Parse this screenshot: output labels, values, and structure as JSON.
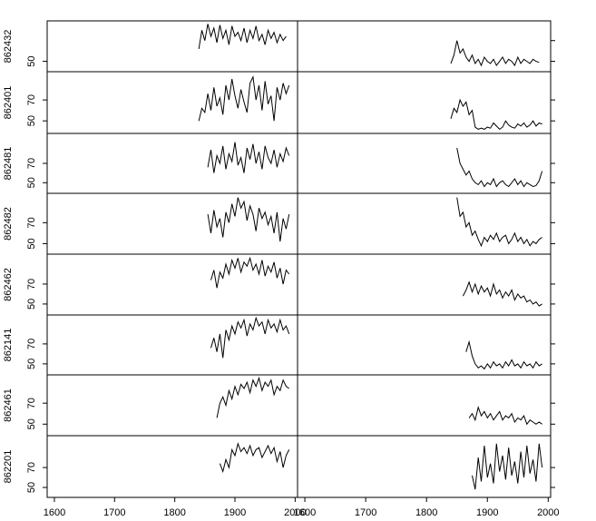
{
  "chart_data": [
    {
      "type": "line",
      "ylabel": "862432",
      "color": "#000000",
      "xlim": [
        1588,
        2004
      ],
      "ylim": [
        40,
        89
      ],
      "yticks": [
        50
      ],
      "x": [
        1840,
        1845,
        1850,
        1855,
        1860,
        1865,
        1870,
        1875,
        1880,
        1885,
        1890,
        1895,
        1900,
        1905,
        1910,
        1915,
        1920,
        1925,
        1930,
        1935,
        1940,
        1945,
        1950,
        1955,
        1960,
        1965,
        1970,
        1975,
        1980,
        1985
      ],
      "values": [
        62,
        80,
        70,
        86,
        74,
        82,
        68,
        85,
        72,
        80,
        66,
        84,
        74,
        78,
        70,
        82,
        68,
        80,
        72,
        84,
        70,
        76,
        66,
        80,
        72,
        78,
        68,
        76,
        70,
        74
      ]
    },
    {
      "type": "line",
      "ylabel": "862401",
      "color": "#000000",
      "xlim": [
        1588,
        2004
      ],
      "ylim": [
        38,
        97
      ],
      "yticks": [
        50,
        70
      ],
      "x": [
        1840,
        1845,
        1850,
        1855,
        1860,
        1865,
        1870,
        1875,
        1880,
        1885,
        1890,
        1895,
        1900,
        1905,
        1910,
        1915,
        1920,
        1925,
        1930,
        1935,
        1940,
        1945,
        1950,
        1955,
        1960,
        1965,
        1970,
        1975,
        1980,
        1985,
        1990
      ],
      "values": [
        50,
        62,
        58,
        76,
        60,
        82,
        64,
        72,
        56,
        84,
        70,
        90,
        74,
        62,
        80,
        68,
        58,
        86,
        92,
        70,
        84,
        60,
        88,
        66,
        74,
        50,
        82,
        70,
        86,
        76,
        84
      ]
    },
    {
      "type": "line",
      "ylabel": "862481",
      "color": "#000000",
      "xlim": [
        1588,
        2004
      ],
      "ylim": [
        39,
        101
      ],
      "yticks": [
        50,
        70
      ],
      "x": [
        1855,
        1860,
        1865,
        1870,
        1875,
        1880,
        1885,
        1890,
        1895,
        1900,
        1905,
        1910,
        1915,
        1920,
        1925,
        1930,
        1935,
        1940,
        1945,
        1950,
        1955,
        1960,
        1965,
        1970,
        1975,
        1980,
        1985,
        1990
      ],
      "values": [
        66,
        84,
        60,
        78,
        70,
        88,
        64,
        80,
        72,
        92,
        68,
        76,
        60,
        86,
        74,
        90,
        70,
        82,
        64,
        88,
        76,
        70,
        84,
        66,
        80,
        72,
        86,
        78
      ]
    },
    {
      "type": "line",
      "ylabel": "862482",
      "color": "#000000",
      "xlim": [
        1588,
        2004
      ],
      "ylim": [
        40,
        98
      ],
      "yticks": [
        50,
        70
      ],
      "x": [
        1855,
        1860,
        1865,
        1870,
        1875,
        1880,
        1885,
        1890,
        1895,
        1900,
        1905,
        1910,
        1915,
        1920,
        1925,
        1930,
        1935,
        1940,
        1945,
        1950,
        1955,
        1960,
        1965,
        1970,
        1975,
        1980,
        1985,
        1990
      ],
      "values": [
        78,
        60,
        82,
        66,
        74,
        56,
        80,
        70,
        88,
        76,
        94,
        84,
        90,
        72,
        86,
        78,
        62,
        84,
        74,
        80,
        68,
        76,
        60,
        80,
        52,
        74,
        64,
        78
      ]
    },
    {
      "type": "line",
      "ylabel": "862462",
      "color": "#000000",
      "xlim": [
        1588,
        2004
      ],
      "ylim": [
        39,
        100
      ],
      "yticks": [
        50,
        70
      ],
      "x": [
        1860,
        1865,
        1870,
        1875,
        1880,
        1885,
        1890,
        1895,
        1900,
        1905,
        1910,
        1915,
        1920,
        1925,
        1930,
        1935,
        1940,
        1945,
        1950,
        1955,
        1960,
        1965,
        1970,
        1975,
        1980,
        1985,
        1990
      ],
      "values": [
        74,
        84,
        66,
        82,
        76,
        90,
        80,
        94,
        86,
        96,
        82,
        92,
        88,
        96,
        84,
        90,
        80,
        94,
        78,
        88,
        82,
        92,
        76,
        86,
        70,
        84,
        80
      ]
    },
    {
      "type": "line",
      "ylabel": "862141",
      "color": "#000000",
      "xlim": [
        1588,
        2004
      ],
      "ylim": [
        39,
        99
      ],
      "yticks": [
        50,
        70
      ],
      "x": [
        1860,
        1865,
        1870,
        1875,
        1880,
        1885,
        1890,
        1895,
        1900,
        1905,
        1910,
        1915,
        1920,
        1925,
        1930,
        1935,
        1940,
        1945,
        1950,
        1955,
        1960,
        1965,
        1970,
        1975,
        1980,
        1985,
        1990
      ],
      "values": [
        66,
        76,
        62,
        80,
        56,
        84,
        74,
        88,
        80,
        92,
        86,
        94,
        78,
        90,
        84,
        96,
        88,
        92,
        80,
        94,
        86,
        90,
        82,
        94,
        84,
        88,
        80
      ]
    },
    {
      "type": "line",
      "ylabel": "862461",
      "color": "#000000",
      "xlim": [
        1588,
        2004
      ],
      "ylim": [
        39,
        97
      ],
      "yticks": [
        50,
        70
      ],
      "x": [
        1870,
        1875,
        1880,
        1885,
        1890,
        1895,
        1900,
        1905,
        1910,
        1915,
        1920,
        1925,
        1930,
        1935,
        1940,
        1945,
        1950,
        1955,
        1960,
        1965,
        1970,
        1975,
        1980,
        1985,
        1990
      ],
      "values": [
        56,
        70,
        76,
        68,
        82,
        74,
        86,
        78,
        88,
        84,
        90,
        80,
        92,
        86,
        94,
        82,
        90,
        86,
        92,
        78,
        86,
        82,
        92,
        86,
        84
      ]
    },
    {
      "type": "line",
      "ylabel": "862201",
      "color": "#000000",
      "xlim": [
        1588,
        2004
      ],
      "ylim": [
        40,
        102
      ],
      "yticks": [
        50,
        70
      ],
      "xticks": [
        1600,
        1700,
        1800,
        1900,
        2000
      ],
      "x": [
        1875,
        1880,
        1885,
        1890,
        1895,
        1900,
        1905,
        1910,
        1915,
        1920,
        1925,
        1930,
        1935,
        1940,
        1945,
        1950,
        1955,
        1960,
        1965,
        1970,
        1975,
        1980,
        1985,
        1990
      ],
      "values": [
        74,
        66,
        78,
        70,
        88,
        82,
        94,
        86,
        90,
        84,
        92,
        82,
        88,
        90,
        80,
        86,
        92,
        84,
        90,
        76,
        86,
        70,
        82,
        88
      ]
    },
    {
      "type": "line",
      "color": "#000000",
      "xlim": [
        1588,
        2004
      ],
      "ylim": [
        40,
        89
      ],
      "yticks": [
        50,
        70
      ],
      "x": [
        1840,
        1845,
        1850,
        1855,
        1860,
        1865,
        1870,
        1875,
        1880,
        1885,
        1890,
        1895,
        1900,
        1905,
        1910,
        1915,
        1920,
        1925,
        1930,
        1935,
        1940,
        1945,
        1950,
        1955,
        1960,
        1965,
        1970,
        1975,
        1980,
        1985
      ],
      "values": [
        48,
        56,
        70,
        58,
        62,
        54,
        50,
        56,
        48,
        52,
        46,
        54,
        50,
        48,
        52,
        46,
        50,
        54,
        48,
        52,
        50,
        46,
        54,
        48,
        52,
        50,
        48,
        52,
        50,
        49
      ]
    },
    {
      "type": "line",
      "color": "#000000",
      "xlim": [
        1588,
        2004
      ],
      "ylim": [
        38,
        97
      ],
      "yticks": [
        50,
        70
      ],
      "x": [
        1840,
        1845,
        1850,
        1855,
        1860,
        1865,
        1870,
        1875,
        1880,
        1885,
        1890,
        1895,
        1900,
        1905,
        1910,
        1915,
        1920,
        1925,
        1930,
        1935,
        1940,
        1945,
        1950,
        1955,
        1960,
        1965,
        1970,
        1975,
        1980,
        1985,
        1990
      ],
      "values": [
        52,
        62,
        58,
        70,
        64,
        68,
        56,
        60,
        44,
        42,
        43,
        42,
        44,
        43,
        48,
        45,
        42,
        44,
        50,
        46,
        44,
        43,
        47,
        45,
        48,
        44,
        46,
        50,
        45,
        48,
        47
      ]
    },
    {
      "type": "line",
      "color": "#000000",
      "xlim": [
        1588,
        2004
      ],
      "ylim": [
        39,
        101
      ],
      "yticks": [
        50,
        70
      ],
      "x": [
        1850,
        1855,
        1860,
        1865,
        1870,
        1875,
        1880,
        1885,
        1890,
        1895,
        1900,
        1905,
        1910,
        1915,
        1920,
        1925,
        1930,
        1935,
        1940,
        1945,
        1950,
        1955,
        1960,
        1965,
        1970,
        1975,
        1980,
        1985,
        1990
      ],
      "values": [
        86,
        70,
        64,
        58,
        62,
        54,
        50,
        48,
        52,
        46,
        50,
        48,
        54,
        46,
        50,
        52,
        48,
        46,
        50,
        54,
        48,
        52,
        46,
        50,
        48,
        46,
        47,
        52,
        62
      ]
    },
    {
      "type": "line",
      "color": "#000000",
      "xlim": [
        1588,
        2004
      ],
      "ylim": [
        40,
        98
      ],
      "yticks": [
        50,
        70
      ],
      "x": [
        1850,
        1855,
        1860,
        1865,
        1870,
        1875,
        1880,
        1885,
        1890,
        1895,
        1900,
        1905,
        1910,
        1915,
        1920,
        1925,
        1930,
        1935,
        1940,
        1945,
        1950,
        1955,
        1960,
        1965,
        1970,
        1975,
        1980,
        1985,
        1990
      ],
      "values": [
        94,
        76,
        80,
        66,
        70,
        58,
        62,
        54,
        48,
        56,
        52,
        58,
        54,
        60,
        52,
        56,
        58,
        50,
        54,
        60,
        52,
        56,
        50,
        54,
        48,
        52,
        50,
        54,
        56
      ]
    },
    {
      "type": "line",
      "color": "#000000",
      "xlim": [
        1588,
        2004
      ],
      "ylim": [
        39,
        100
      ],
      "yticks": [
        50,
        70
      ],
      "x": [
        1860,
        1865,
        1870,
        1875,
        1880,
        1885,
        1890,
        1895,
        1900,
        1905,
        1910,
        1915,
        1920,
        1925,
        1930,
        1935,
        1940,
        1945,
        1950,
        1955,
        1960,
        1965,
        1970,
        1975,
        1980,
        1985,
        1990
      ],
      "values": [
        58,
        64,
        72,
        62,
        70,
        60,
        68,
        62,
        66,
        58,
        70,
        60,
        64,
        56,
        62,
        58,
        64,
        54,
        60,
        56,
        58,
        52,
        54,
        50,
        52,
        48,
        50
      ]
    },
    {
      "type": "line",
      "color": "#000000",
      "xlim": [
        1588,
        2004
      ],
      "ylim": [
        39,
        99
      ],
      "yticks": [
        50,
        70
      ],
      "x": [
        1865,
        1870,
        1875,
        1880,
        1885,
        1890,
        1895,
        1900,
        1905,
        1910,
        1915,
        1920,
        1925,
        1930,
        1935,
        1940,
        1945,
        1950,
        1955,
        1960,
        1965,
        1970,
        1975,
        1980,
        1985,
        1990
      ],
      "values": [
        62,
        72,
        58,
        50,
        46,
        48,
        45,
        50,
        46,
        52,
        48,
        50,
        46,
        52,
        48,
        54,
        48,
        50,
        46,
        52,
        48,
        50,
        46,
        52,
        48,
        50
      ]
    },
    {
      "type": "line",
      "color": "#000000",
      "xlim": [
        1588,
        2004
      ],
      "ylim": [
        39,
        97
      ],
      "yticks": [
        50,
        70
      ],
      "x": [
        1870,
        1875,
        1880,
        1885,
        1890,
        1895,
        1900,
        1905,
        1910,
        1915,
        1920,
        1925,
        1930,
        1935,
        1940,
        1945,
        1950,
        1955,
        1960,
        1965,
        1970,
        1975,
        1980,
        1985,
        1990
      ],
      "values": [
        56,
        60,
        54,
        66,
        58,
        62,
        56,
        60,
        54,
        58,
        62,
        54,
        58,
        56,
        60,
        52,
        56,
        54,
        58,
        50,
        54,
        52,
        50,
        52,
        50
      ]
    },
    {
      "type": "line",
      "color": "#000000",
      "xlim": [
        1588,
        2004
      ],
      "ylim": [
        40,
        102
      ],
      "yticks": [
        50,
        70
      ],
      "xticks": [
        1600,
        1700,
        1800,
        1900,
        2000
      ],
      "x": [
        1875,
        1880,
        1885,
        1890,
        1895,
        1900,
        1905,
        1910,
        1915,
        1920,
        1925,
        1930,
        1935,
        1940,
        1945,
        1950,
        1955,
        1960,
        1965,
        1970,
        1975,
        1980,
        1985,
        1990
      ],
      "values": [
        62,
        48,
        80,
        56,
        92,
        60,
        74,
        54,
        94,
        66,
        82,
        58,
        90,
        62,
        76,
        54,
        86,
        60,
        92,
        64,
        78,
        56,
        94,
        70
      ]
    }
  ]
}
